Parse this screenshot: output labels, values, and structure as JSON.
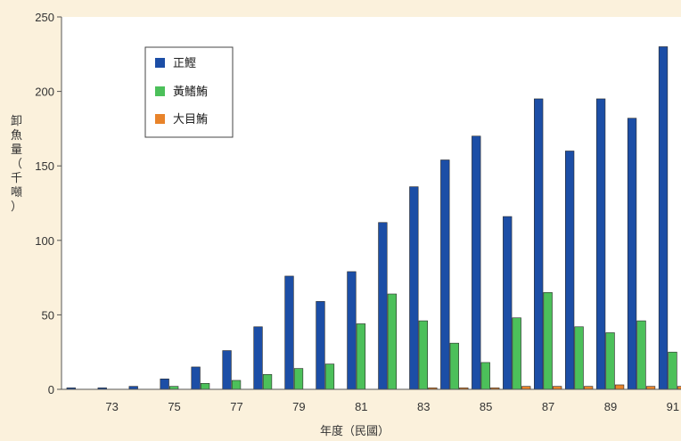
{
  "chart_data": {
    "type": "bar",
    "xlabel": "年度（民國）",
    "ylabel": "卸魚量（千噸）",
    "ylim": [
      0,
      250
    ],
    "yticks": [
      0,
      50,
      100,
      150,
      200,
      250
    ],
    "categories": [
      72,
      73,
      74,
      75,
      76,
      77,
      78,
      79,
      80,
      81,
      82,
      83,
      84,
      85,
      86,
      87,
      88,
      89,
      90,
      91
    ],
    "x_tick_labels": [
      "73",
      "75",
      "77",
      "79",
      "81",
      "83",
      "85",
      "87",
      "89",
      "91"
    ],
    "legend_position": "top-left",
    "grid": false,
    "series": [
      {
        "name": "正鰹",
        "color": "#1c4ea6",
        "values": [
          1,
          1,
          2,
          7,
          15,
          26,
          42,
          76,
          59,
          79,
          112,
          136,
          154,
          170,
          116,
          195,
          160,
          195,
          182,
          230
        ]
      },
      {
        "name": "黃鰭鮪",
        "color": "#4cc05a",
        "values": [
          0,
          0,
          0,
          2,
          4,
          6,
          10,
          14,
          17,
          44,
          64,
          46,
          31,
          18,
          48,
          65,
          42,
          38,
          46,
          25
        ]
      },
      {
        "name": "大目鮪",
        "color": "#e8832a",
        "values": [
          0,
          0,
          0,
          0,
          0,
          0,
          0,
          0,
          0,
          0,
          0,
          1,
          1,
          1,
          2,
          2,
          2,
          3,
          2,
          2
        ]
      }
    ]
  }
}
